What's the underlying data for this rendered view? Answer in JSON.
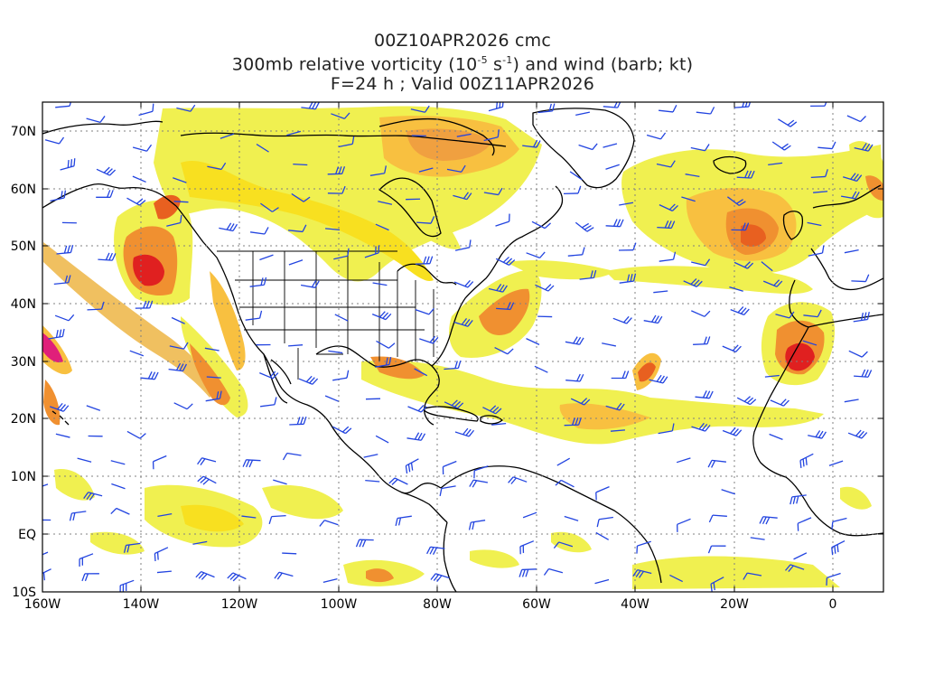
{
  "title": {
    "line1": "00Z10APR2026 cmc",
    "line2_prefix": "300mb relative vorticity (10",
    "line2_exp1": "-5",
    "line2_mid": " s",
    "line2_exp2": "-1",
    "line2_suffix": ") and wind (barb; kt)",
    "line3": "F=24 h ; Valid 00Z11APR2026"
  },
  "axes": {
    "lat_labels": [
      "70N",
      "60N",
      "50N",
      "40N",
      "30N",
      "20N",
      "10N",
      "EQ",
      "10S"
    ],
    "lon_labels": [
      "160W",
      "140W",
      "120W",
      "100W",
      "80W",
      "60W",
      "40W",
      "20W",
      "0"
    ]
  },
  "colors": {
    "light_yellow": "#f0f050",
    "yellow": "#f8e020",
    "orange_light": "#f8c040",
    "orange": "#f09030",
    "red_orange": "#e86020",
    "red": "#e02020",
    "magenta": "#e0207a",
    "barb": "#2244e0",
    "coast": "#000000",
    "grid": "#808080"
  },
  "map": {
    "extent": {
      "lon_min": -160,
      "lon_max": 10,
      "lat_min": -10,
      "lat_max": 75
    },
    "grid_lines": "dotted"
  }
}
